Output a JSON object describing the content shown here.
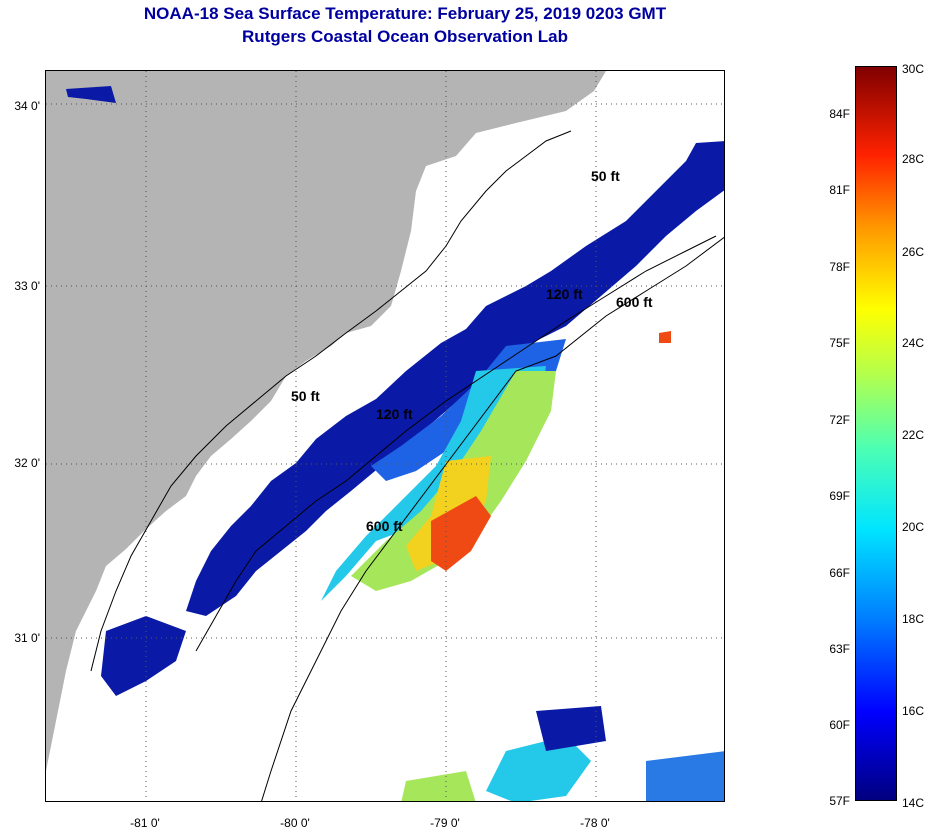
{
  "header": {
    "title": "NOAA-18 Sea Surface Temperature:  February 25, 2019 0203 GMT",
    "subtitle": "Rutgers Coastal Ocean Observation Lab"
  },
  "map": {
    "lat_labels": [
      "34 0'",
      "33 0'",
      "32 0'",
      "31 0'"
    ],
    "lon_labels": [
      "-81 0'",
      "-80 0'",
      "-79 0'",
      "-78 0'"
    ],
    "contour_labels": [
      "50 ft",
      "120 ft",
      "600 ft",
      "50 ft",
      "120 ft",
      "600 ft"
    ],
    "colors": {
      "land": "#b4b4b4",
      "ocean_nodata": "#ffffff",
      "cold": "#00007f",
      "warm": "#ff2200"
    }
  },
  "colorbar": {
    "celsius": [
      "30C",
      "28C",
      "26C",
      "24C",
      "22C",
      "20C",
      "18C",
      "16C",
      "14C"
    ],
    "fahrenheit": [
      "84F",
      "81F",
      "78F",
      "75F",
      "72F",
      "69F",
      "66F",
      "63F",
      "60F",
      "57F"
    ],
    "range_c": [
      14,
      30
    ],
    "range_f": [
      57,
      86
    ]
  }
}
